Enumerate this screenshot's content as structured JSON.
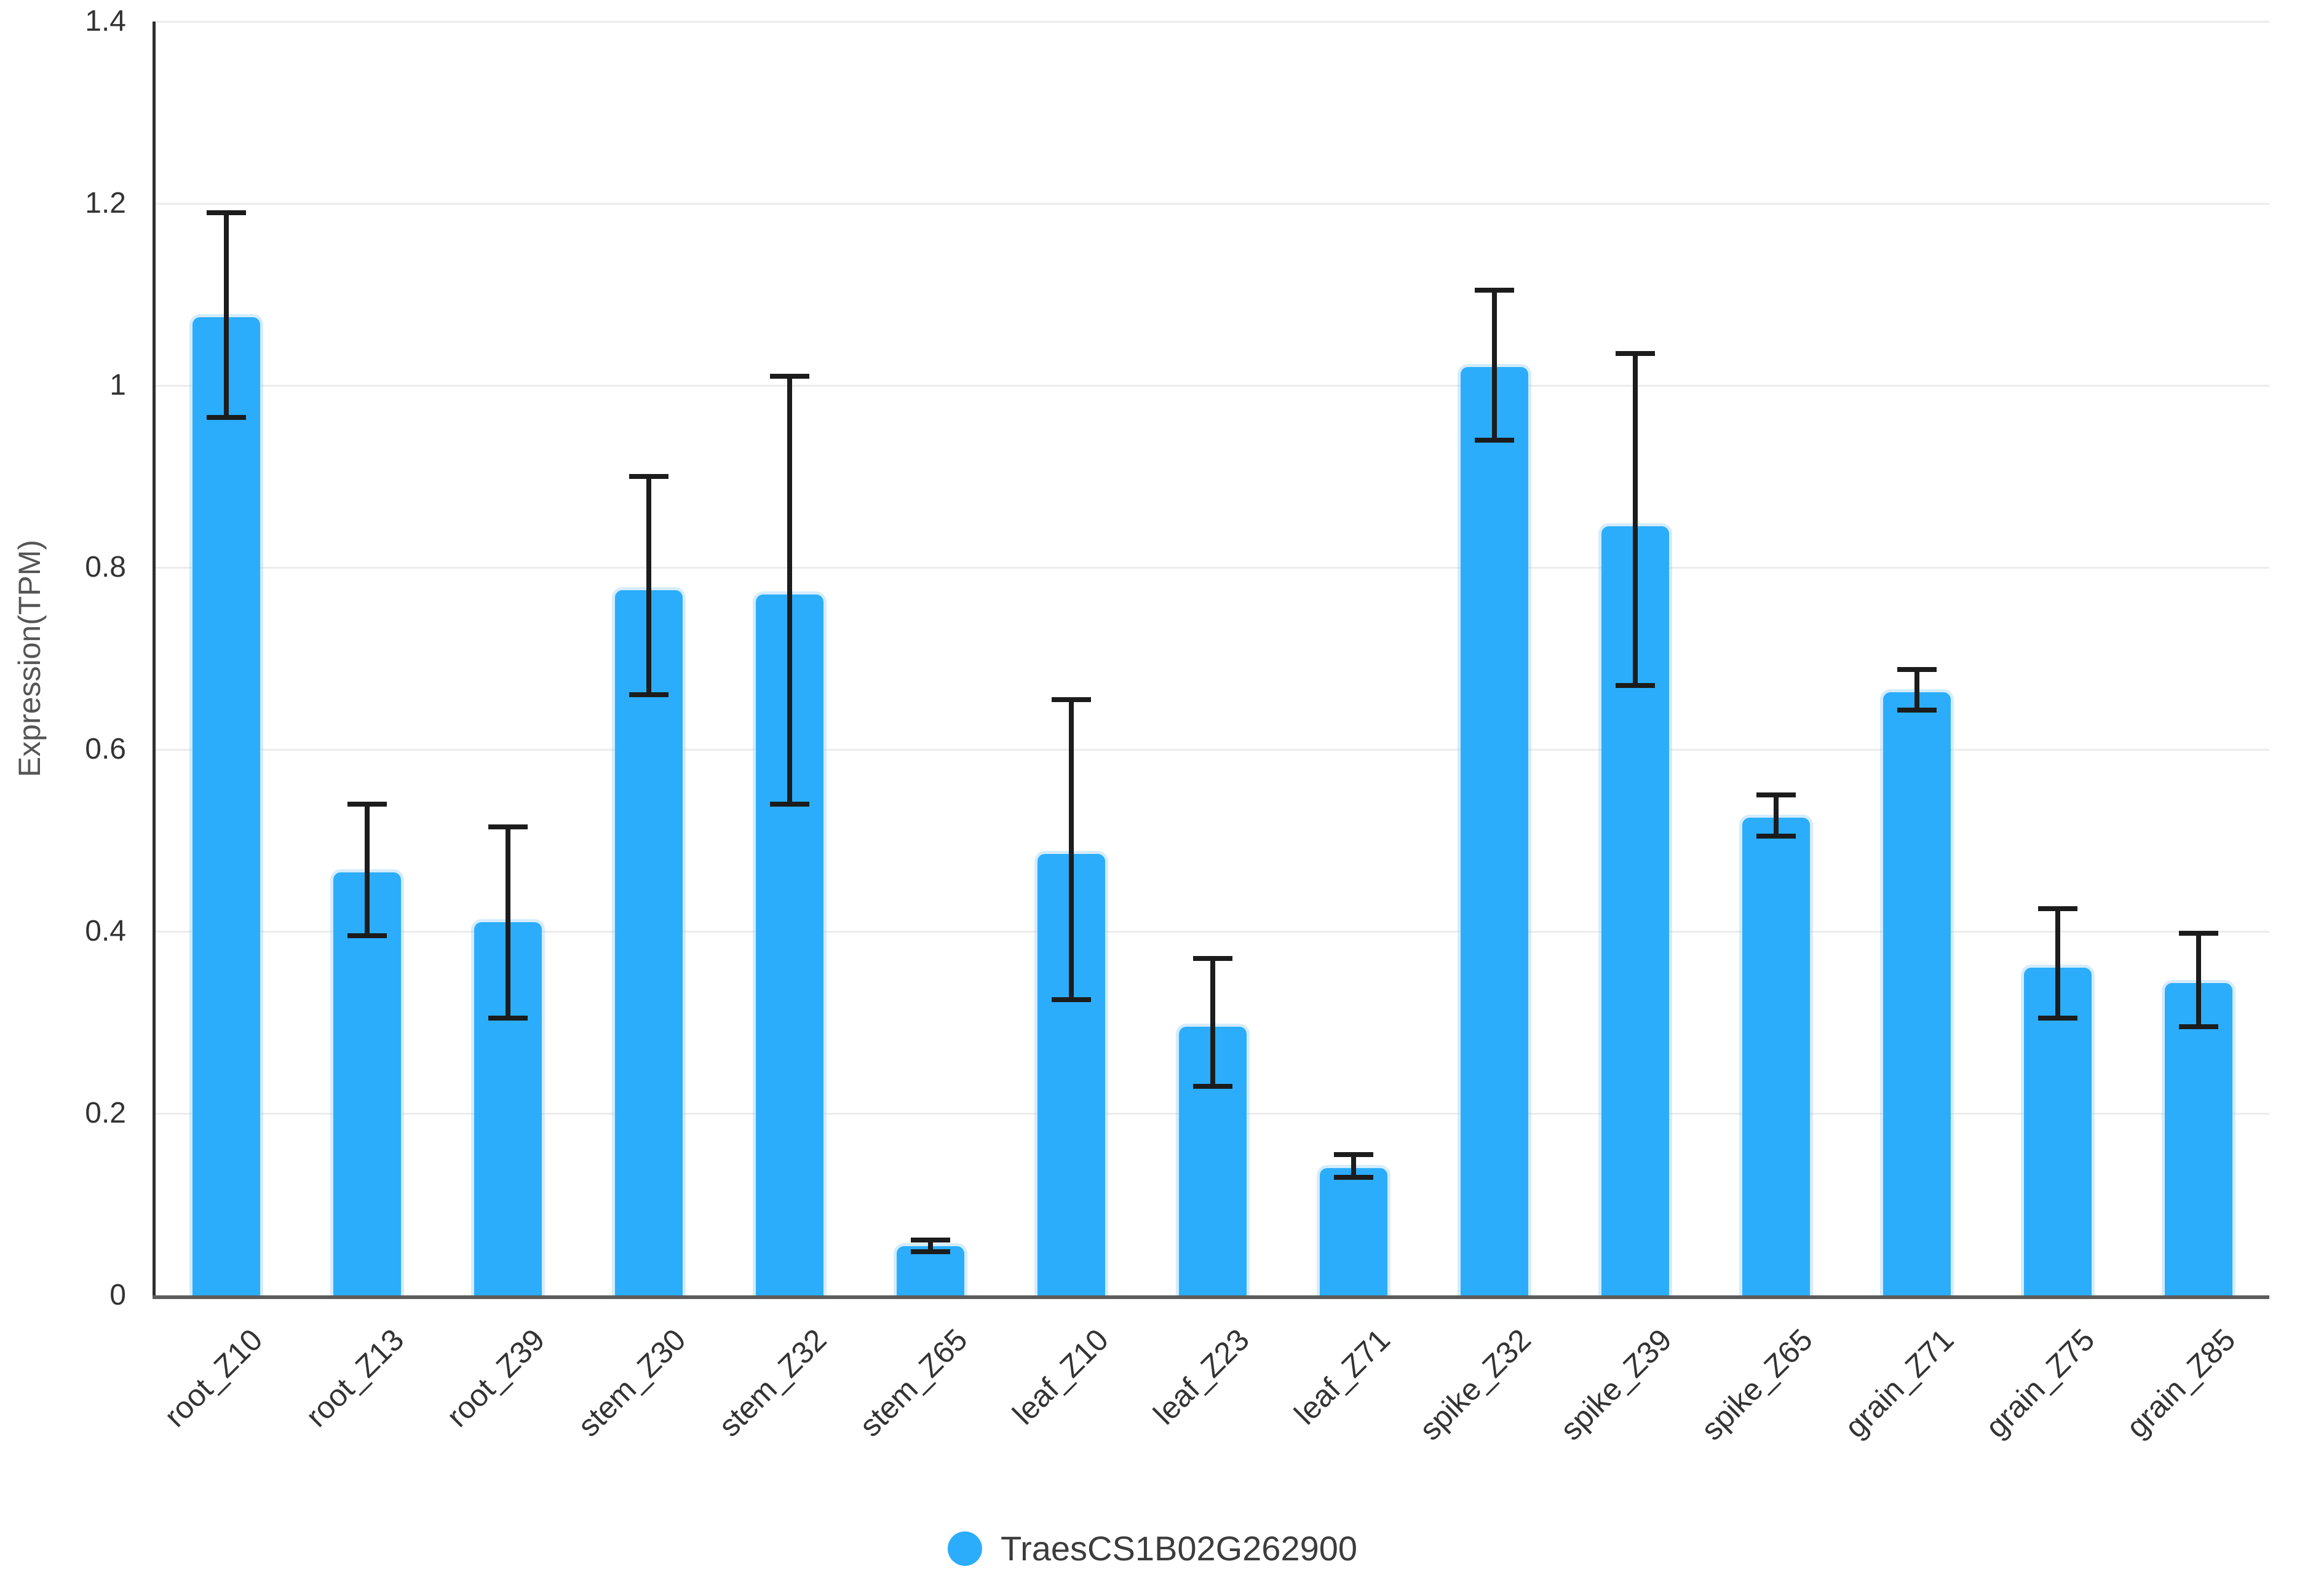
{
  "chart_data": {
    "type": "bar",
    "title": "",
    "xlabel": "",
    "ylabel": "Expression(TPM)",
    "ylim": [
      0,
      1.4
    ],
    "yticks": [
      0,
      0.2,
      0.4,
      0.6,
      0.8,
      1,
      1.2,
      1.4
    ],
    "ytick_labels": [
      "0",
      "0.2",
      "0.4",
      "0.6",
      "0.8",
      "1",
      "1.2",
      "1.4"
    ],
    "grid": true,
    "legend_position": "bottom",
    "categories": [
      "root_Z10",
      "root_Z13",
      "root_Z39",
      "stem_Z30",
      "stem_Z32",
      "stem_Z65",
      "leaf_Z10",
      "leaf_Z23",
      "leaf_Z71",
      "spike_Z32",
      "spike_Z39",
      "spike_Z65",
      "grain_Z71",
      "grain_Z75",
      "grain_Z85"
    ],
    "series": [
      {
        "name": "TraesCS1B02G262900",
        "color": "#2badfb",
        "values": [
          1.075,
          0.465,
          0.41,
          0.775,
          0.77,
          0.054,
          0.485,
          0.295,
          0.14,
          1.02,
          0.845,
          0.525,
          0.663,
          0.36,
          0.343
        ],
        "error_low": [
          0.965,
          0.395,
          0.305,
          0.66,
          0.54,
          0.048,
          0.325,
          0.23,
          0.13,
          0.94,
          0.67,
          0.505,
          0.643,
          0.305,
          0.295
        ],
        "error_high": [
          1.19,
          0.54,
          0.515,
          0.9,
          1.01,
          0.061,
          0.655,
          0.37,
          0.155,
          1.105,
          1.035,
          0.55,
          0.688,
          0.425,
          0.398
        ]
      }
    ]
  },
  "colors": {
    "bar": "#2badfb",
    "bar_halo": "rgba(162,213,248,0.45)",
    "error_bar": "#1c1c1c",
    "grid": "#ececec",
    "y_axis": "#2e2e2e",
    "x_axis": "#5c5c5c",
    "tick_text": "#333333",
    "axis_title_text": "#555555",
    "legend_text": "#3c3c3c",
    "background": "#ffffff"
  }
}
